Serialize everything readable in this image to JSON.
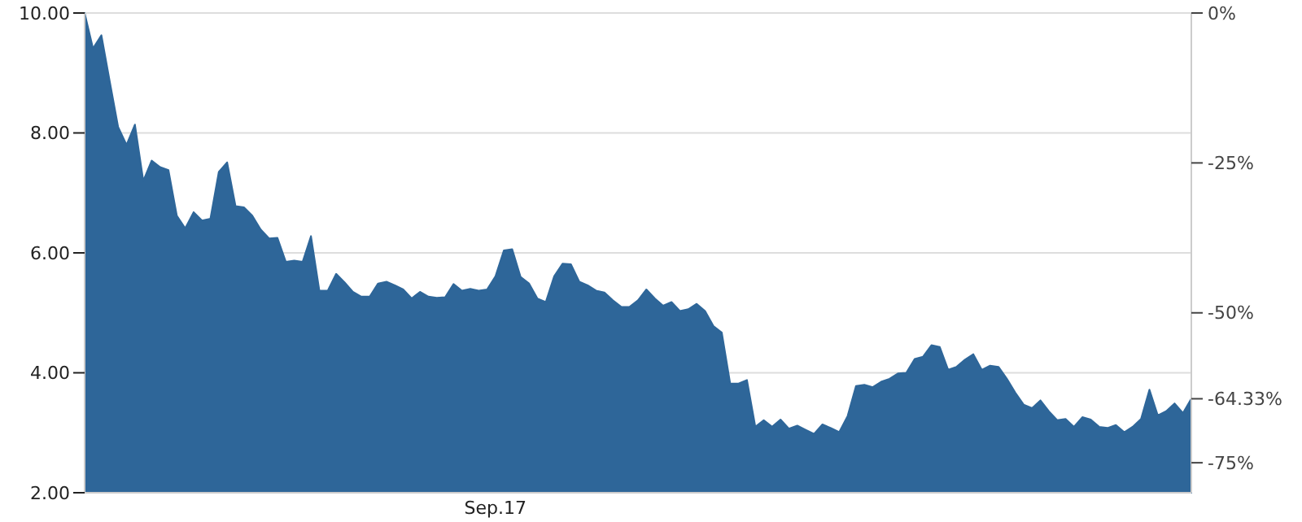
{
  "chart_data": {
    "type": "area",
    "categories": [
      null,
      null,
      null,
      null,
      null,
      null,
      null,
      null,
      null,
      null,
      null,
      null,
      null,
      null,
      null,
      null,
      null,
      null,
      null,
      null,
      null,
      null,
      null,
      null,
      null,
      null,
      null,
      null,
      null,
      null,
      null,
      null,
      null,
      null,
      null,
      null,
      null,
      null,
      null,
      null,
      null,
      null,
      null,
      null,
      null,
      null,
      null,
      null,
      null,
      "Sep.17",
      null,
      null,
      null,
      null,
      null,
      null,
      null,
      null,
      null,
      null,
      null,
      null,
      null,
      null,
      null,
      null,
      null,
      null,
      null,
      null,
      null,
      null,
      null,
      null,
      null,
      null,
      null,
      null,
      null,
      null,
      null,
      null,
      null,
      null,
      null,
      null,
      null,
      null,
      null,
      null,
      null,
      null,
      null,
      null,
      null,
      null,
      null,
      null,
      null,
      null,
      null,
      null,
      null,
      null,
      null,
      null,
      null,
      null,
      null,
      null,
      null,
      null,
      null,
      null,
      null,
      null,
      null,
      null,
      null,
      null,
      null,
      null,
      null,
      null,
      null,
      null,
      null,
      null,
      null,
      null,
      null,
      null,
      null
    ],
    "values": [
      10.0,
      9.41,
      9.63,
      8.86,
      8.1,
      7.8,
      8.14,
      7.2,
      7.54,
      7.43,
      7.38,
      6.62,
      6.41,
      6.68,
      6.54,
      6.57,
      7.35,
      7.51,
      6.78,
      6.76,
      6.62,
      6.39,
      6.24,
      6.25,
      5.85,
      5.87,
      5.85,
      6.28,
      5.37,
      5.37,
      5.65,
      5.51,
      5.35,
      5.27,
      5.27,
      5.49,
      5.52,
      5.46,
      5.39,
      5.24,
      5.35,
      5.27,
      5.25,
      5.26,
      5.48,
      5.37,
      5.4,
      5.37,
      5.39,
      5.61,
      6.04,
      6.06,
      5.6,
      5.49,
      5.24,
      5.18,
      5.61,
      5.82,
      5.81,
      5.52,
      5.46,
      5.37,
      5.34,
      5.21,
      5.1,
      5.1,
      5.21,
      5.39,
      5.24,
      5.12,
      5.18,
      5.03,
      5.06,
      5.15,
      5.03,
      4.78,
      4.67,
      3.82,
      3.82,
      3.88,
      3.1,
      3.21,
      3.1,
      3.22,
      3.07,
      3.12,
      3.05,
      2.98,
      3.14,
      3.08,
      3.01,
      3.28,
      3.78,
      3.8,
      3.76,
      3.85,
      3.9,
      3.99,
      4.0,
      4.23,
      4.27,
      4.46,
      4.43,
      4.05,
      4.1,
      4.22,
      4.31,
      4.05,
      4.12,
      4.1,
      3.9,
      3.67,
      3.47,
      3.41,
      3.54,
      3.36,
      3.21,
      3.23,
      3.1,
      3.26,
      3.22,
      3.1,
      3.08,
      3.13,
      3.01,
      3.1,
      3.23,
      3.72,
      3.29,
      3.36,
      3.49,
      3.33,
      3.57
    ],
    "color": "#2e6699",
    "ylim": [
      2,
      10
    ],
    "yticks": [
      {
        "value": 2,
        "label": "2.00"
      },
      {
        "value": 4,
        "label": "4.00"
      },
      {
        "value": 6,
        "label": "6.00"
      },
      {
        "value": 8,
        "label": "8.00"
      },
      {
        "value": 10,
        "label": "10.00"
      }
    ],
    "y2lim": [
      -80,
      0
    ],
    "y2ticks": [
      {
        "value": -75,
        "label": "-75%"
      },
      {
        "value": -64.33,
        "label": "-64.33%"
      },
      {
        "value": -50,
        "label": "-50%"
      },
      {
        "value": -25,
        "label": "-25%"
      },
      {
        "value": 0,
        "label": "0%"
      }
    ],
    "grid": "y"
  }
}
